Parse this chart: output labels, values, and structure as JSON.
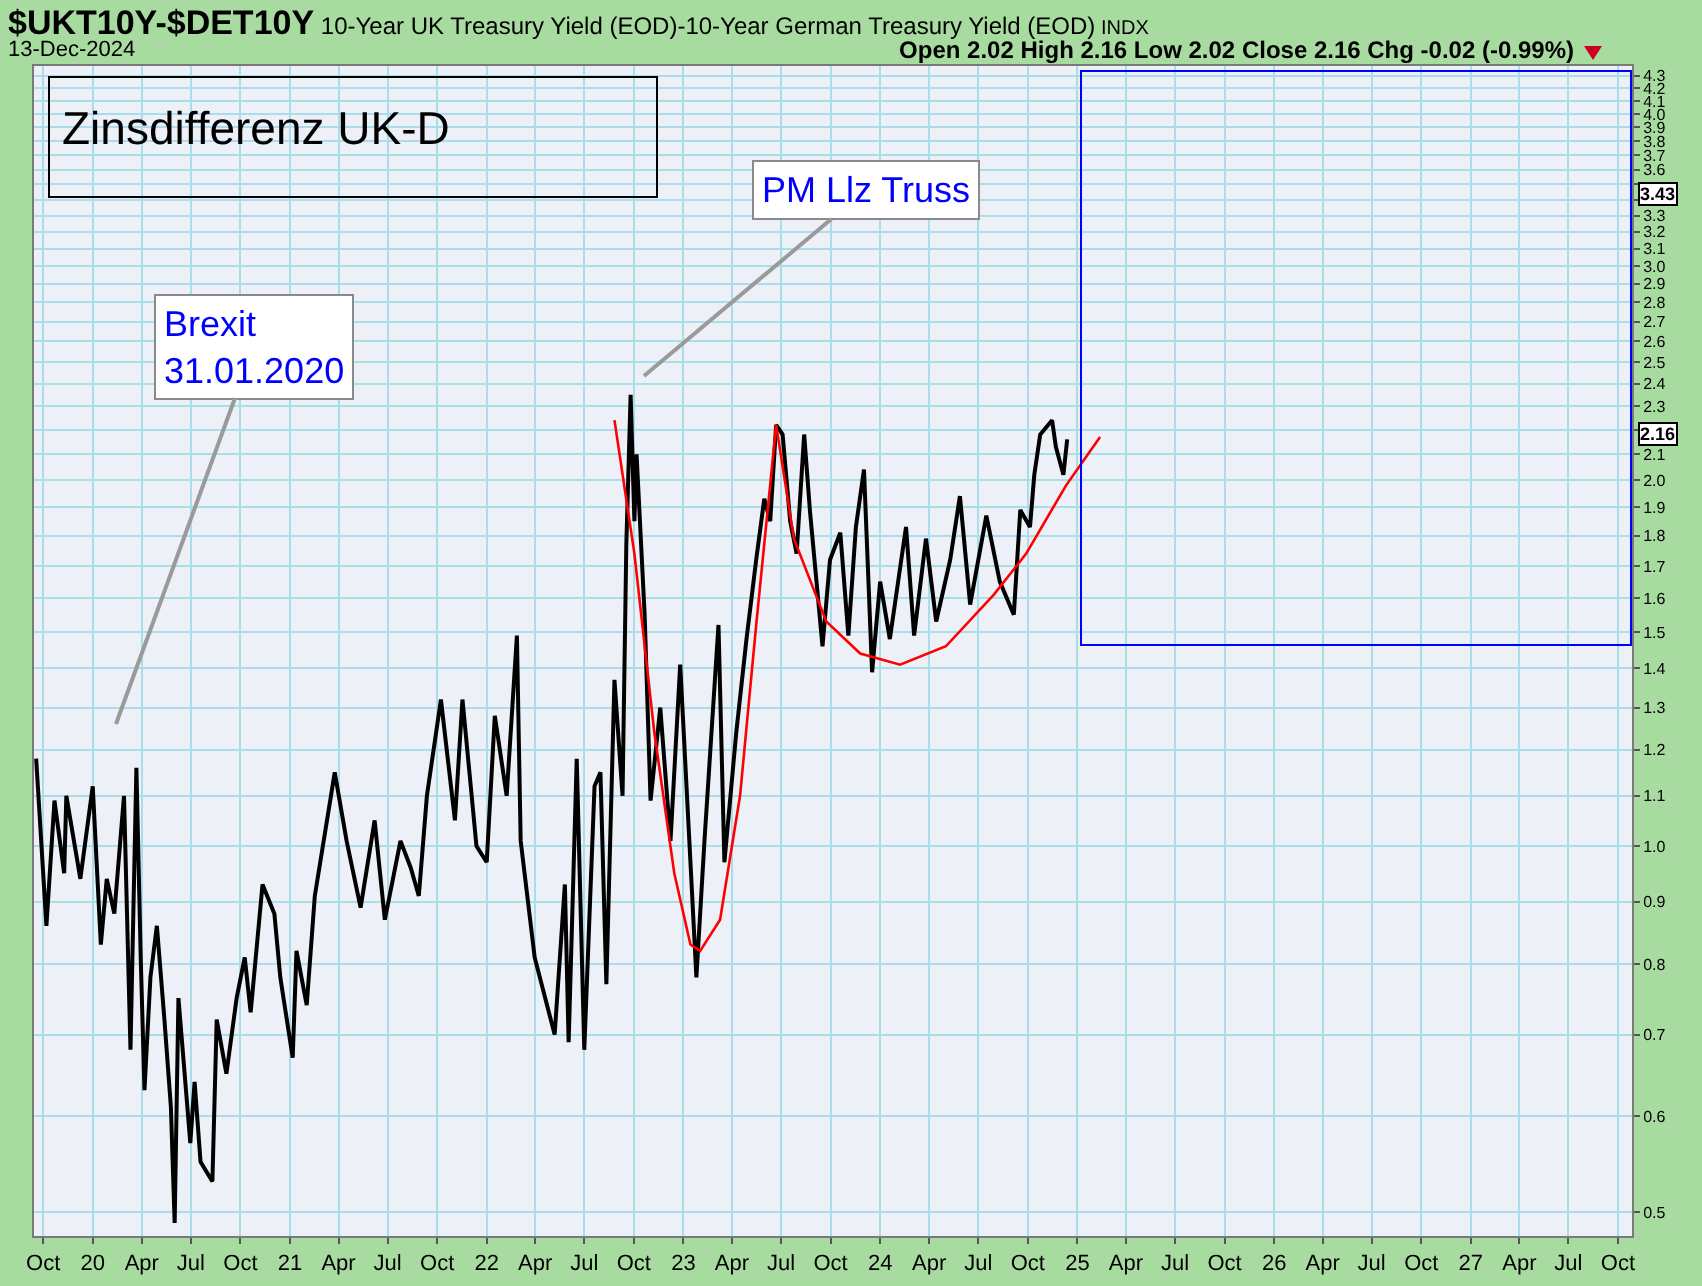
{
  "chart_data": {
    "type": "line",
    "title": "$UKT10Y-$DET10Y",
    "subtitle": "10-Year UK Treasury Yield (EOD)-10-Year German Treasury Yield (EOD)",
    "annotations": [
      "INDX",
      "13-Dec-2024",
      "Open 2.02 High 2.16 Low 2.02 Close 2.16 Chg -0.02 (-0.99%)",
      "Zinsdifferenz UK-D",
      "Brexit\n31.01.2020",
      "PM Llz Truss",
      "3.43",
      "2.16"
    ],
    "series": [
      {
        "color": "#000000",
        "x": [
          "2019-09-18",
          "2019-10-07",
          "2019-10-22",
          "2019-11-09",
          "2019-11-13",
          "2019-12-09",
          "2020-01-01",
          "2020-01-16",
          "2020-01-27",
          "2020-02-10",
          "2020-02-28",
          "2020-03-11",
          "2020-03-22",
          "2020-03-30",
          "2020-04-06",
          "2020-04-17",
          "2020-04-29",
          "2020-05-13",
          "2020-05-25",
          "2020-06-01",
          "2020-06-08",
          "2020-06-30",
          "2020-07-08",
          "2020-07-19",
          "2020-08-10",
          "2020-08-18",
          "2020-09-05",
          "2020-09-24",
          "2020-10-09",
          "2020-10-20",
          "2020-11-11",
          "2020-12-03",
          "2020-12-14",
          "2021-01-06",
          "2021-01-13",
          "2021-02-01",
          "2021-02-16",
          "2021-03-25",
          "2021-04-16",
          "2021-05-12",
          "2021-06-07",
          "2021-06-26",
          "2021-07-25",
          "2021-08-13",
          "2021-08-28",
          "2021-09-12",
          "2021-10-08",
          "2021-11-03",
          "2021-11-17",
          "2021-12-13",
          "2022-01-01",
          "2022-01-16",
          "2022-02-07",
          "2022-02-26",
          "2022-03-05",
          "2022-03-31",
          "2022-05-07",
          "2022-05-26",
          "2022-06-02",
          "2022-06-17",
          "2022-07-01",
          "2022-07-20",
          "2022-07-31",
          "2022-08-11",
          "2022-08-26",
          "2022-09-10",
          "2022-09-17",
          "2022-09-25",
          "2022-10-02",
          "2022-10-06",
          "2022-10-21",
          "2022-11-01",
          "2022-11-19",
          "2022-12-08",
          "2022-12-26",
          "2023-01-14",
          "2023-01-25",
          "2023-02-09",
          "2023-03-07",
          "2023-03-18",
          "2023-04-09",
          "2023-04-28",
          "2023-05-16",
          "2023-05-31",
          "2023-06-11",
          "2023-06-22",
          "2023-07-04",
          "2023-07-18",
          "2023-07-30",
          "2023-08-13",
          "2023-08-24",
          "2023-09-16",
          "2023-09-30",
          "2023-10-19",
          "2023-11-03",
          "2023-11-17",
          "2023-12-02",
          "2023-12-17",
          "2024-01-01",
          "2024-01-19",
          "2024-02-18",
          "2024-03-04",
          "2024-03-26",
          "2024-04-14",
          "2024-05-10",
          "2024-05-28",
          "2024-06-16",
          "2024-07-16",
          "2024-08-10",
          "2024-09-05",
          "2024-09-17",
          "2024-10-05",
          "2024-10-13",
          "2024-10-24",
          "2024-11-15",
          "2024-11-22",
          "2024-12-06",
          "2024-12-13"
        ],
        "values": [
          1.18,
          0.86,
          1.09,
          0.95,
          1.1,
          0.94,
          1.12,
          0.83,
          0.94,
          0.88,
          1.1,
          0.68,
          1.16,
          0.81,
          0.63,
          0.78,
          0.86,
          0.72,
          0.61,
          0.49,
          0.75,
          0.57,
          0.64,
          0.55,
          0.53,
          0.72,
          0.65,
          0.75,
          0.81,
          0.73,
          0.93,
          0.88,
          0.78,
          0.67,
          0.82,
          0.74,
          0.91,
          1.15,
          1.01,
          0.89,
          1.05,
          0.87,
          1.01,
          0.96,
          0.91,
          1.1,
          1.32,
          1.05,
          1.32,
          1.0,
          0.97,
          1.28,
          1.1,
          1.49,
          1.01,
          0.81,
          0.7,
          0.93,
          0.69,
          1.18,
          0.68,
          1.12,
          1.15,
          0.77,
          1.37,
          1.1,
          1.77,
          2.35,
          1.85,
          2.1,
          1.55,
          1.09,
          1.3,
          1.01,
          1.41,
          0.97,
          0.78,
          1.01,
          1.52,
          0.97,
          1.24,
          1.48,
          1.72,
          1.93,
          1.85,
          2.22,
          2.18,
          1.85,
          1.74,
          2.18,
          1.88,
          1.46,
          1.72,
          1.81,
          1.49,
          1.83,
          2.04,
          1.39,
          1.65,
          1.48,
          1.83,
          1.49,
          1.79,
          1.53,
          1.72,
          1.94,
          1.58,
          1.87,
          1.65,
          1.55,
          1.89,
          1.83,
          2.02,
          2.18,
          2.24,
          2.13,
          2.02,
          2.16
        ]
      },
      {
        "type": "line",
        "color": "#ff0000",
        "x": [
          "2022-08-26",
          "2022-10-02",
          "2022-11-08",
          "2022-12-15",
          "2023-01-14",
          "2023-02-01",
          "2023-03-10",
          "2023-04-16",
          "2023-05-16",
          "2023-06-22"
        ],
        "values": [
          2.24,
          1.74,
          1.24,
          0.95,
          0.83,
          0.82,
          0.87,
          1.1,
          1.52,
          2.22
        ]
      },
      {
        "type": "line",
        "color": "#ff0000",
        "x": [
          "2023-06-22",
          "2023-07-25",
          "2023-09-23",
          "2023-11-25",
          "2024-02-07",
          "2024-05-02",
          "2024-07-30",
          "2024-09-28",
          "2024-12-11",
          "2025-02-12"
        ],
        "values": [
          2.22,
          1.79,
          1.53,
          1.44,
          1.41,
          1.46,
          1.61,
          1.74,
          1.98,
          2.17
        ]
      }
    ],
    "xlim": [
      "2019-09-14",
      "2027-10-27"
    ],
    "xticks": [
      {
        "value": "2019-10-01",
        "label": "Oct"
      },
      {
        "value": "2020-01-01",
        "label": "20"
      },
      {
        "value": "2020-04-01",
        "label": "Apr"
      },
      {
        "value": "2020-07-01",
        "label": "Jul"
      },
      {
        "value": "2020-10-01",
        "label": "Oct"
      },
      {
        "value": "2021-01-01",
        "label": "21"
      },
      {
        "value": "2021-04-01",
        "label": "Apr"
      },
      {
        "value": "2021-07-01",
        "label": "Jul"
      },
      {
        "value": "2021-10-01",
        "label": "Oct"
      },
      {
        "value": "2022-01-01",
        "label": "22"
      },
      {
        "value": "2022-04-01",
        "label": "Apr"
      },
      {
        "value": "2022-07-01",
        "label": "Jul"
      },
      {
        "value": "2022-10-01",
        "label": "Oct"
      },
      {
        "value": "2023-01-01",
        "label": "23"
      },
      {
        "value": "2023-04-01",
        "label": "Apr"
      },
      {
        "value": "2023-07-01",
        "label": "Jul"
      },
      {
        "value": "2023-10-01",
        "label": "Oct"
      },
      {
        "value": "2024-01-01",
        "label": "24"
      },
      {
        "value": "2024-04-01",
        "label": "Apr"
      },
      {
        "value": "2024-07-01",
        "label": "Jul"
      },
      {
        "value": "2024-10-01",
        "label": "Oct"
      },
      {
        "value": "2025-01-01",
        "label": "25"
      },
      {
        "value": "2025-04-01",
        "label": "Apr"
      },
      {
        "value": "2025-07-01",
        "label": "Jul"
      },
      {
        "value": "2025-10-01",
        "label": "Oct"
      },
      {
        "value": "2026-01-01",
        "label": "26"
      },
      {
        "value": "2026-04-01",
        "label": "Apr"
      },
      {
        "value": "2026-07-01",
        "label": "Jul"
      },
      {
        "value": "2026-10-01",
        "label": "Oct"
      },
      {
        "value": "2027-01-01",
        "label": "27"
      },
      {
        "value": "2027-04-01",
        "label": "Apr"
      },
      {
        "value": "2027-07-01",
        "label": "Jul"
      },
      {
        "value": "2027-10-01",
        "label": "Oct"
      }
    ],
    "ylim": [
      0.478,
      4.38
    ],
    "yticks": [
      0.5,
      0.6,
      0.7,
      0.8,
      0.9,
      {
        "value": 1,
        "label": "1.0"
      },
      1.1,
      1.2,
      1.3,
      1.4,
      1.5,
      1.6,
      1.7,
      1.8,
      1.9,
      {
        "value": 2,
        "label": "2.0"
      },
      2.1,
      {
        "value": 2.2,
        "label": null
      },
      2.3,
      2.4,
      2.5,
      2.6,
      2.7,
      2.8,
      2.9,
      {
        "value": 3,
        "label": "3.0"
      },
      3.1,
      3.2,
      3.3,
      {
        "value": 3.4,
        "label": null
      },
      {
        "value": 3.5,
        "label": null
      },
      3.6,
      3.7,
      3.8,
      3.9,
      {
        "value": 4,
        "label": "4.0"
      },
      4.1,
      4.2,
      4.3
    ],
    "log": true,
    "grid": true
  }
}
